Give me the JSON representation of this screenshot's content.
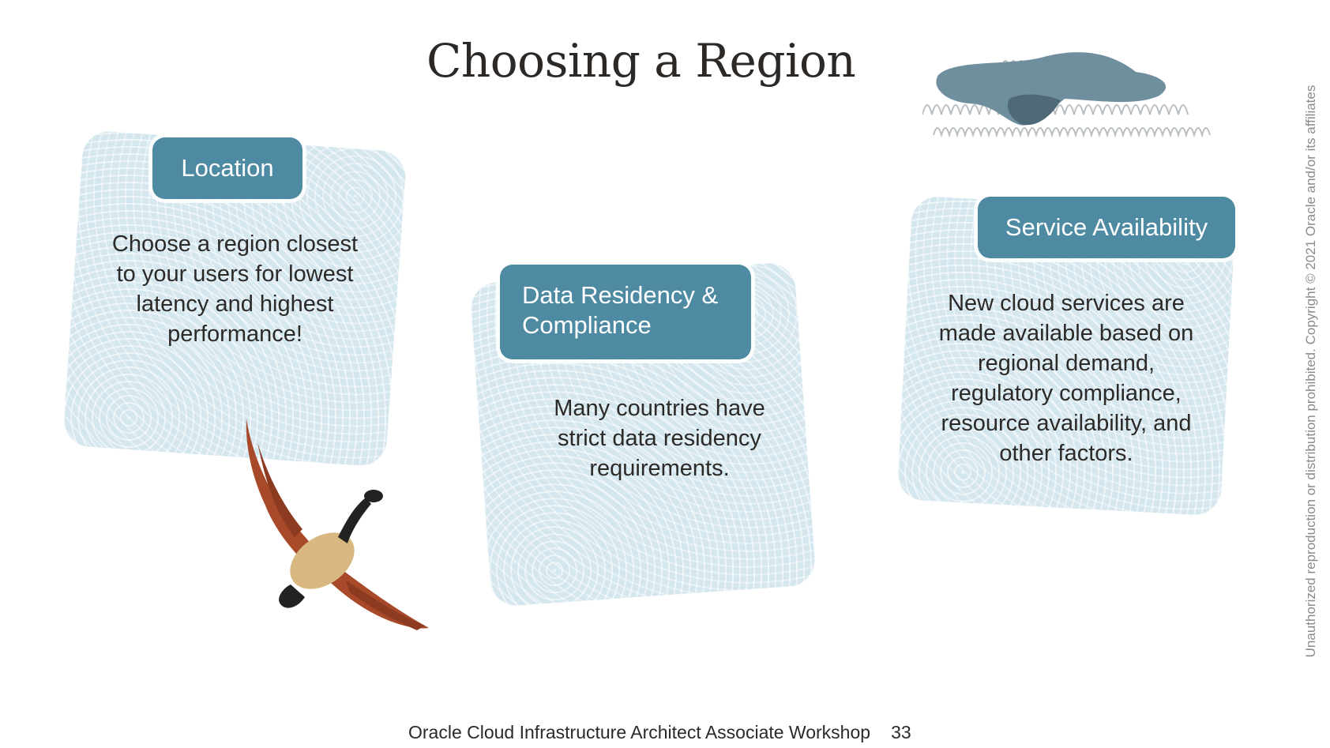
{
  "slide": {
    "title": "Choosing a Region",
    "cards": [
      {
        "label": "Location",
        "text": "Choose a region closest to your users for lowest latency and highest performance!"
      },
      {
        "label": "Data Residency & Compliance",
        "text": "Many countries have strict data residency requirements."
      },
      {
        "label": "Service Availability",
        "text": "New cloud services are made available based on regional demand,  regulatory compliance, resource availability, and other factors."
      }
    ],
    "footer": {
      "workshop": "Oracle Cloud Infrastructure Architect Associate Workshop",
      "page_number": "33"
    },
    "copyright": "Unauthorized reproduction or distribution prohibited. Copyright © 2021 Oracle and/or its affiliates",
    "colors": {
      "label_bg": "#4e8aa2",
      "card_bg": "#d4e6ee",
      "goose_wing": "#a84a2a",
      "goose_body": "#d8b880",
      "cloud": "#6f8e9e"
    },
    "illustrations": [
      "goose-illustration",
      "cloud-illustration"
    ]
  }
}
